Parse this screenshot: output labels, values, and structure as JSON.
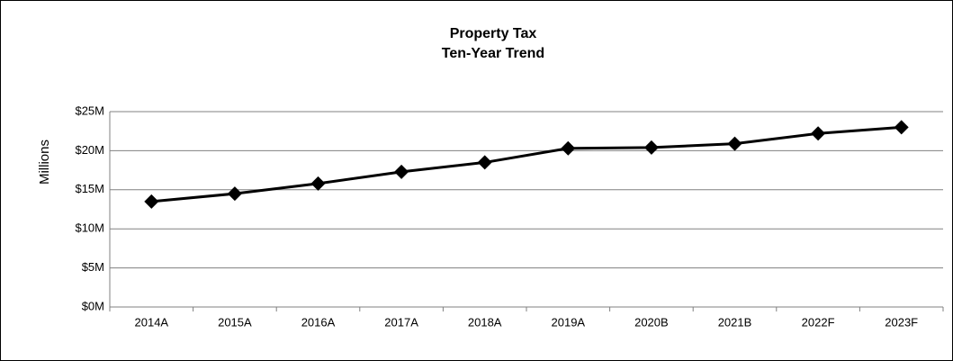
{
  "chart_data": {
    "type": "line",
    "title": [
      "Property Tax",
      "Ten-Year Trend"
    ],
    "y_axis_label": "Millions",
    "categories": [
      "2014A",
      "2015A",
      "2016A",
      "2017A",
      "2018A",
      "2019A",
      "2020B",
      "2021B",
      "2022F",
      "2023F"
    ],
    "series": [
      {
        "name": "Property Tax",
        "color": "#000000",
        "values": [
          13.5,
          14.5,
          15.8,
          17.3,
          18.5,
          20.3,
          20.4,
          20.9,
          22.2,
          23.0
        ]
      }
    ],
    "ylim": [
      0,
      25
    ],
    "yticks": [
      {
        "value": 0,
        "label": "$0M"
      },
      {
        "value": 5,
        "label": "$5M"
      },
      {
        "value": 10,
        "label": "$10M"
      },
      {
        "value": 15,
        "label": "$15M"
      },
      {
        "value": 20,
        "label": "$20M"
      },
      {
        "value": 25,
        "label": "$25M"
      }
    ],
    "grid": true
  }
}
